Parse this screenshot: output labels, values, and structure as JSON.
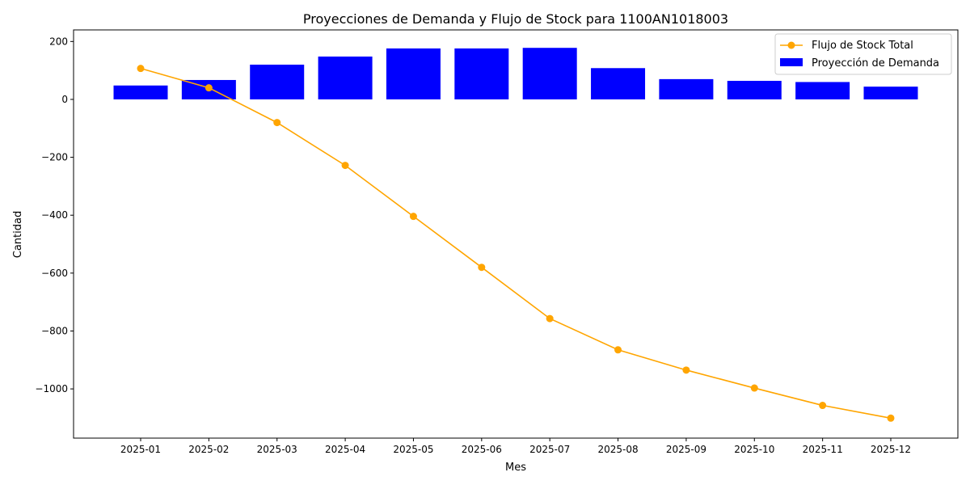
{
  "chart_data": {
    "type": "bar",
    "title": "Proyecciones de Demanda y Flujo de Stock para 1100AN1018003",
    "xlabel": "Mes",
    "ylabel": "Cantidad",
    "categories": [
      "2025-01",
      "2025-02",
      "2025-03",
      "2025-04",
      "2025-05",
      "2025-06",
      "2025-07",
      "2025-08",
      "2025-09",
      "2025-10",
      "2025-11",
      "2025-12"
    ],
    "ylim": [
      -1170,
      240
    ],
    "yticks": [
      200,
      0,
      -200,
      -400,
      -600,
      -800,
      -1000
    ],
    "yticks_labels": [
      "200",
      "0",
      "−200",
      "−400",
      "−600",
      "−800",
      "−1000"
    ],
    "grid": false,
    "legend_position": "top-right",
    "series": [
      {
        "name": "Flujo de Stock Total",
        "kind": "line",
        "color": "#FFA500",
        "marker": "circle",
        "values": [
          107,
          40,
          -80,
          -228,
          -404,
          -580,
          -757,
          -865,
          -935,
          -997,
          -1057,
          -1101
        ]
      },
      {
        "name": "Proyección de Demanda",
        "kind": "bar",
        "color": "#0000FF",
        "values": [
          48,
          67,
          120,
          148,
          176,
          176,
          178,
          108,
          70,
          64,
          60,
          44
        ]
      }
    ]
  }
}
